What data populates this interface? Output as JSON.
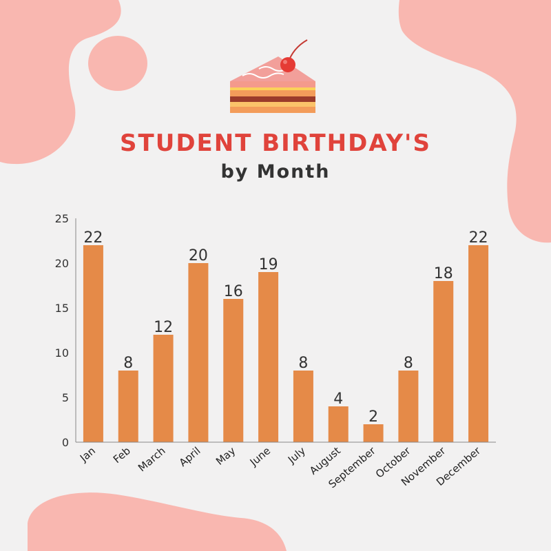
{
  "header": {
    "title": "STUDENT BIRTHDAY'S",
    "subtitle": "by Month",
    "icon": "cake-slice-icon"
  },
  "colors": {
    "background": "#f2f1f1",
    "blob": "#f9b7b0",
    "bar": "#e58a48",
    "title": "#e0433b",
    "text": "#333333"
  },
  "chart_data": {
    "type": "bar",
    "title": "STUDENT BIRTHDAY'S",
    "subtitle": "by Month",
    "xlabel": "",
    "ylabel": "",
    "categories": [
      "Jan",
      "Feb",
      "March",
      "April",
      "May",
      "June",
      "July",
      "August",
      "September",
      "October",
      "November",
      "December"
    ],
    "values": [
      22,
      8,
      12,
      20,
      16,
      19,
      8,
      4,
      2,
      8,
      18,
      22
    ],
    "ylim": [
      0,
      25
    ],
    "yticks": [
      0,
      5,
      10,
      15,
      20,
      25
    ],
    "grid": false,
    "data_labels": true,
    "legend": "none"
  }
}
